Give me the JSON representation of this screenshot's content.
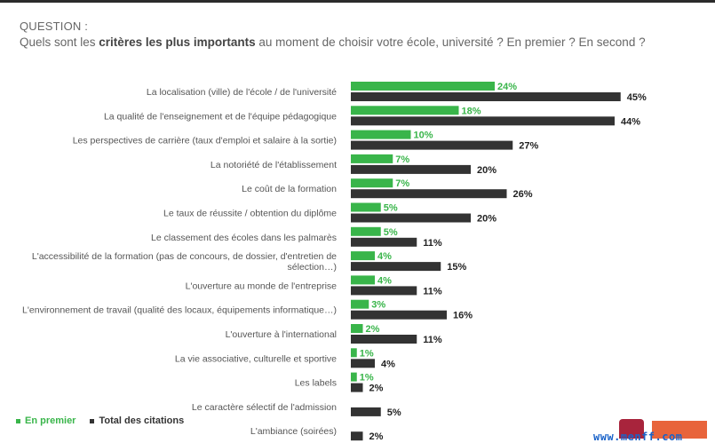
{
  "header": {
    "question_label": "QUESTION :",
    "question_part1": "Quels sont les ",
    "question_bold": "critères les plus importants",
    "question_part2": " au moment de choisir votre école, université ? En premier ? En second ?"
  },
  "legend": {
    "first": "En premier",
    "total": "Total des citations"
  },
  "watermark": "www.menff.com",
  "colors": {
    "green": "#39b54a",
    "dark": "#333333",
    "green_text": "#39b54a",
    "label_text": "#555555"
  },
  "chart_data": {
    "type": "bar",
    "orientation": "horizontal",
    "title": "",
    "xlabel": "",
    "ylabel": "",
    "unit": "%",
    "categories": [
      [
        "La localisation (ville) de l'école / de l'université"
      ],
      [
        "La qualité de l'enseignement et de l'équipe pédagogique"
      ],
      [
        "Les perspectives de carrière (taux d'emploi et salaire à la sortie)"
      ],
      [
        "La notoriété de l'établissement"
      ],
      [
        "Le coût de la formation"
      ],
      [
        "Le taux de réussite / obtention du diplôme"
      ],
      [
        "Le classement des écoles dans les palmarès"
      ],
      [
        "L'accessibilité de la formation (pas de concours, de dossier, d'entretien de",
        "sélection…)"
      ],
      [
        "L'ouverture au monde de l'entreprise"
      ],
      [
        "L'environnement de travail (qualité des locaux, équipements informatique…)"
      ],
      [
        "L'ouverture à l'international"
      ],
      [
        "La vie associative, culturelle et sportive"
      ],
      [
        "Les labels"
      ],
      [
        "Le caractère sélectif de l'admission"
      ],
      [
        "L'ambiance (soirées)"
      ]
    ],
    "series": [
      {
        "name": "En premier",
        "values": [
          24,
          18,
          10,
          7,
          7,
          5,
          5,
          4,
          4,
          3,
          2,
          1,
          1,
          null,
          null
        ]
      },
      {
        "name": "Total des citations",
        "values": [
          45,
          44,
          27,
          20,
          26,
          20,
          11,
          15,
          11,
          16,
          11,
          4,
          2,
          5,
          2
        ]
      }
    ],
    "legend_position": "bottom-left",
    "grid": false
  }
}
